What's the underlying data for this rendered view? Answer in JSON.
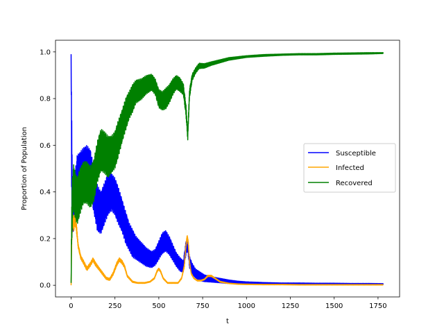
{
  "chart_data": {
    "type": "line",
    "title": "",
    "xlabel": "t",
    "ylabel": "Proportion of Population",
    "xlim": [
      -89,
      1873
    ],
    "ylim": [
      -0.05,
      1.05
    ],
    "xticks": [
      0,
      250,
      500,
      750,
      1000,
      1250,
      1500,
      1750
    ],
    "yticks": [
      0.0,
      0.2,
      0.4,
      0.6,
      0.8,
      1.0
    ],
    "xtick_labels": [
      "0",
      "250",
      "500",
      "750",
      "1000",
      "1250",
      "1500",
      "1750"
    ],
    "ytick_labels": [
      "0.0",
      "0.2",
      "0.4",
      "0.6",
      "0.8",
      "1.0"
    ],
    "grid": false,
    "legend_position": "center-right",
    "series": [
      {
        "name": "Susceptible",
        "color": "#0000ff",
        "x": [
          0,
          3,
          8,
          15,
          25,
          35,
          50,
          70,
          90,
          110,
          130,
          150,
          170,
          190,
          210,
          230,
          250,
          270,
          290,
          310,
          330,
          350,
          370,
          400,
          430,
          460,
          480,
          500,
          520,
          540,
          560,
          580,
          600,
          620,
          640,
          655,
          665,
          675,
          690,
          710,
          730,
          760,
          800,
          850,
          900,
          950,
          1000,
          1100,
          1200,
          1300,
          1400,
          1500,
          1600,
          1700,
          1780
        ],
        "y": [
          0.99,
          0.55,
          0.3,
          0.33,
          0.4,
          0.46,
          0.47,
          0.49,
          0.5,
          0.48,
          0.41,
          0.33,
          0.31,
          0.35,
          0.39,
          0.4,
          0.38,
          0.34,
          0.3,
          0.25,
          0.21,
          0.18,
          0.16,
          0.14,
          0.12,
          0.11,
          0.12,
          0.15,
          0.18,
          0.19,
          0.17,
          0.14,
          0.11,
          0.09,
          0.08,
          0.16,
          0.18,
          0.1,
          0.07,
          0.05,
          0.04,
          0.03,
          0.025,
          0.02,
          0.015,
          0.012,
          0.01,
          0.008,
          0.007,
          0.007,
          0.006,
          0.006,
          0.005,
          0.005,
          0.005
        ],
        "amp": [
          0,
          0.2,
          0.08,
          0.09,
          0.1,
          0.1,
          0.1,
          0.1,
          0.1,
          0.1,
          0.1,
          0.1,
          0.09,
          0.09,
          0.09,
          0.08,
          0.08,
          0.08,
          0.07,
          0.07,
          0.06,
          0.06,
          0.05,
          0.045,
          0.04,
          0.035,
          0.035,
          0.04,
          0.045,
          0.045,
          0.04,
          0.035,
          0.03,
          0.03,
          0.025,
          0.03,
          0.03,
          0.025,
          0.025,
          0.02,
          0.02,
          0.015,
          0.012,
          0.01,
          0.008,
          0.006,
          0.005,
          0.004,
          0.003,
          0.003,
          0.003,
          0.003,
          0.003,
          0.003,
          0.002
        ]
      },
      {
        "name": "Infected",
        "color": "#ffa500",
        "x": [
          0,
          3,
          8,
          15,
          22,
          30,
          40,
          55,
          70,
          90,
          110,
          125,
          140,
          160,
          180,
          200,
          220,
          240,
          260,
          275,
          290,
          305,
          320,
          350,
          380,
          420,
          450,
          475,
          490,
          500,
          510,
          525,
          550,
          580,
          610,
          630,
          645,
          655,
          662,
          668,
          675,
          685,
          700,
          720,
          740,
          760,
          780,
          800,
          820,
          850,
          900,
          950,
          1000,
          1100,
          1200,
          1300,
          1400,
          1500,
          1600,
          1700,
          1780
        ],
        "y": [
          0.0,
          0.18,
          0.28,
          0.26,
          0.29,
          0.25,
          0.17,
          0.12,
          0.1,
          0.07,
          0.09,
          0.11,
          0.09,
          0.07,
          0.05,
          0.03,
          0.025,
          0.05,
          0.09,
          0.11,
          0.1,
          0.08,
          0.04,
          0.015,
          0.01,
          0.01,
          0.015,
          0.03,
          0.06,
          0.07,
          0.06,
          0.03,
          0.01,
          0.01,
          0.01,
          0.03,
          0.08,
          0.17,
          0.21,
          0.18,
          0.1,
          0.05,
          0.03,
          0.02,
          0.02,
          0.025,
          0.04,
          0.04,
          0.03,
          0.015,
          0.008,
          0.005,
          0.004,
          0.003,
          0.003,
          0.002,
          0.002,
          0.002,
          0.002,
          0.002,
          0.002
        ],
        "amp": [
          0,
          0.02,
          0.03,
          0.03,
          0.03,
          0.02,
          0.01,
          0.008,
          0.008,
          0.008,
          0.008,
          0.008,
          0.008,
          0.006,
          0.006,
          0.005,
          0.005,
          0.006,
          0.008,
          0.008,
          0.008,
          0.006,
          0.004,
          0.003,
          0.002,
          0.002,
          0.002,
          0.003,
          0.004,
          0.004,
          0.004,
          0.003,
          0.002,
          0.002,
          0.002,
          0.003,
          0.005,
          0.008,
          0.008,
          0.008,
          0.005,
          0.003,
          0.002,
          0.002,
          0.002,
          0.002,
          0.003,
          0.003,
          0.002,
          0.002,
          0.001,
          0.001,
          0.001,
          0.001,
          0.001,
          0.001,
          0.001,
          0.001,
          0.001,
          0.001,
          0.001
        ]
      },
      {
        "name": "Recovered",
        "color": "#008000",
        "x": [
          0,
          3,
          8,
          15,
          25,
          35,
          50,
          70,
          90,
          110,
          130,
          150,
          170,
          190,
          210,
          230,
          250,
          270,
          290,
          310,
          330,
          350,
          370,
          400,
          430,
          460,
          480,
          500,
          520,
          540,
          560,
          580,
          600,
          620,
          640,
          655,
          665,
          675,
          690,
          710,
          730,
          760,
          800,
          850,
          900,
          950,
          1000,
          1100,
          1200,
          1300,
          1400,
          1500,
          1600,
          1700,
          1780
        ],
        "y": [
          0.01,
          0.25,
          0.38,
          0.42,
          0.38,
          0.36,
          0.4,
          0.44,
          0.44,
          0.42,
          0.45,
          0.53,
          0.58,
          0.57,
          0.55,
          0.56,
          0.58,
          0.63,
          0.68,
          0.73,
          0.77,
          0.8,
          0.83,
          0.84,
          0.86,
          0.87,
          0.85,
          0.8,
          0.79,
          0.8,
          0.82,
          0.85,
          0.87,
          0.86,
          0.84,
          0.75,
          0.64,
          0.82,
          0.89,
          0.92,
          0.94,
          0.94,
          0.95,
          0.96,
          0.97,
          0.975,
          0.98,
          0.985,
          0.988,
          0.99,
          0.99,
          0.992,
          0.993,
          0.994,
          0.995
        ],
        "amp": [
          0,
          0.1,
          0.1,
          0.1,
          0.1,
          0.1,
          0.1,
          0.09,
          0.09,
          0.09,
          0.09,
          0.09,
          0.09,
          0.09,
          0.09,
          0.08,
          0.08,
          0.08,
          0.07,
          0.07,
          0.06,
          0.06,
          0.05,
          0.045,
          0.04,
          0.035,
          0.035,
          0.04,
          0.04,
          0.045,
          0.04,
          0.035,
          0.03,
          0.03,
          0.025,
          0.025,
          0.02,
          0.02,
          0.015,
          0.012,
          0.012,
          0.01,
          0.008,
          0.007,
          0.006,
          0.005,
          0.004,
          0.004,
          0.003,
          0.003,
          0.003,
          0.003,
          0.003,
          0.003,
          0.002
        ]
      }
    ]
  }
}
